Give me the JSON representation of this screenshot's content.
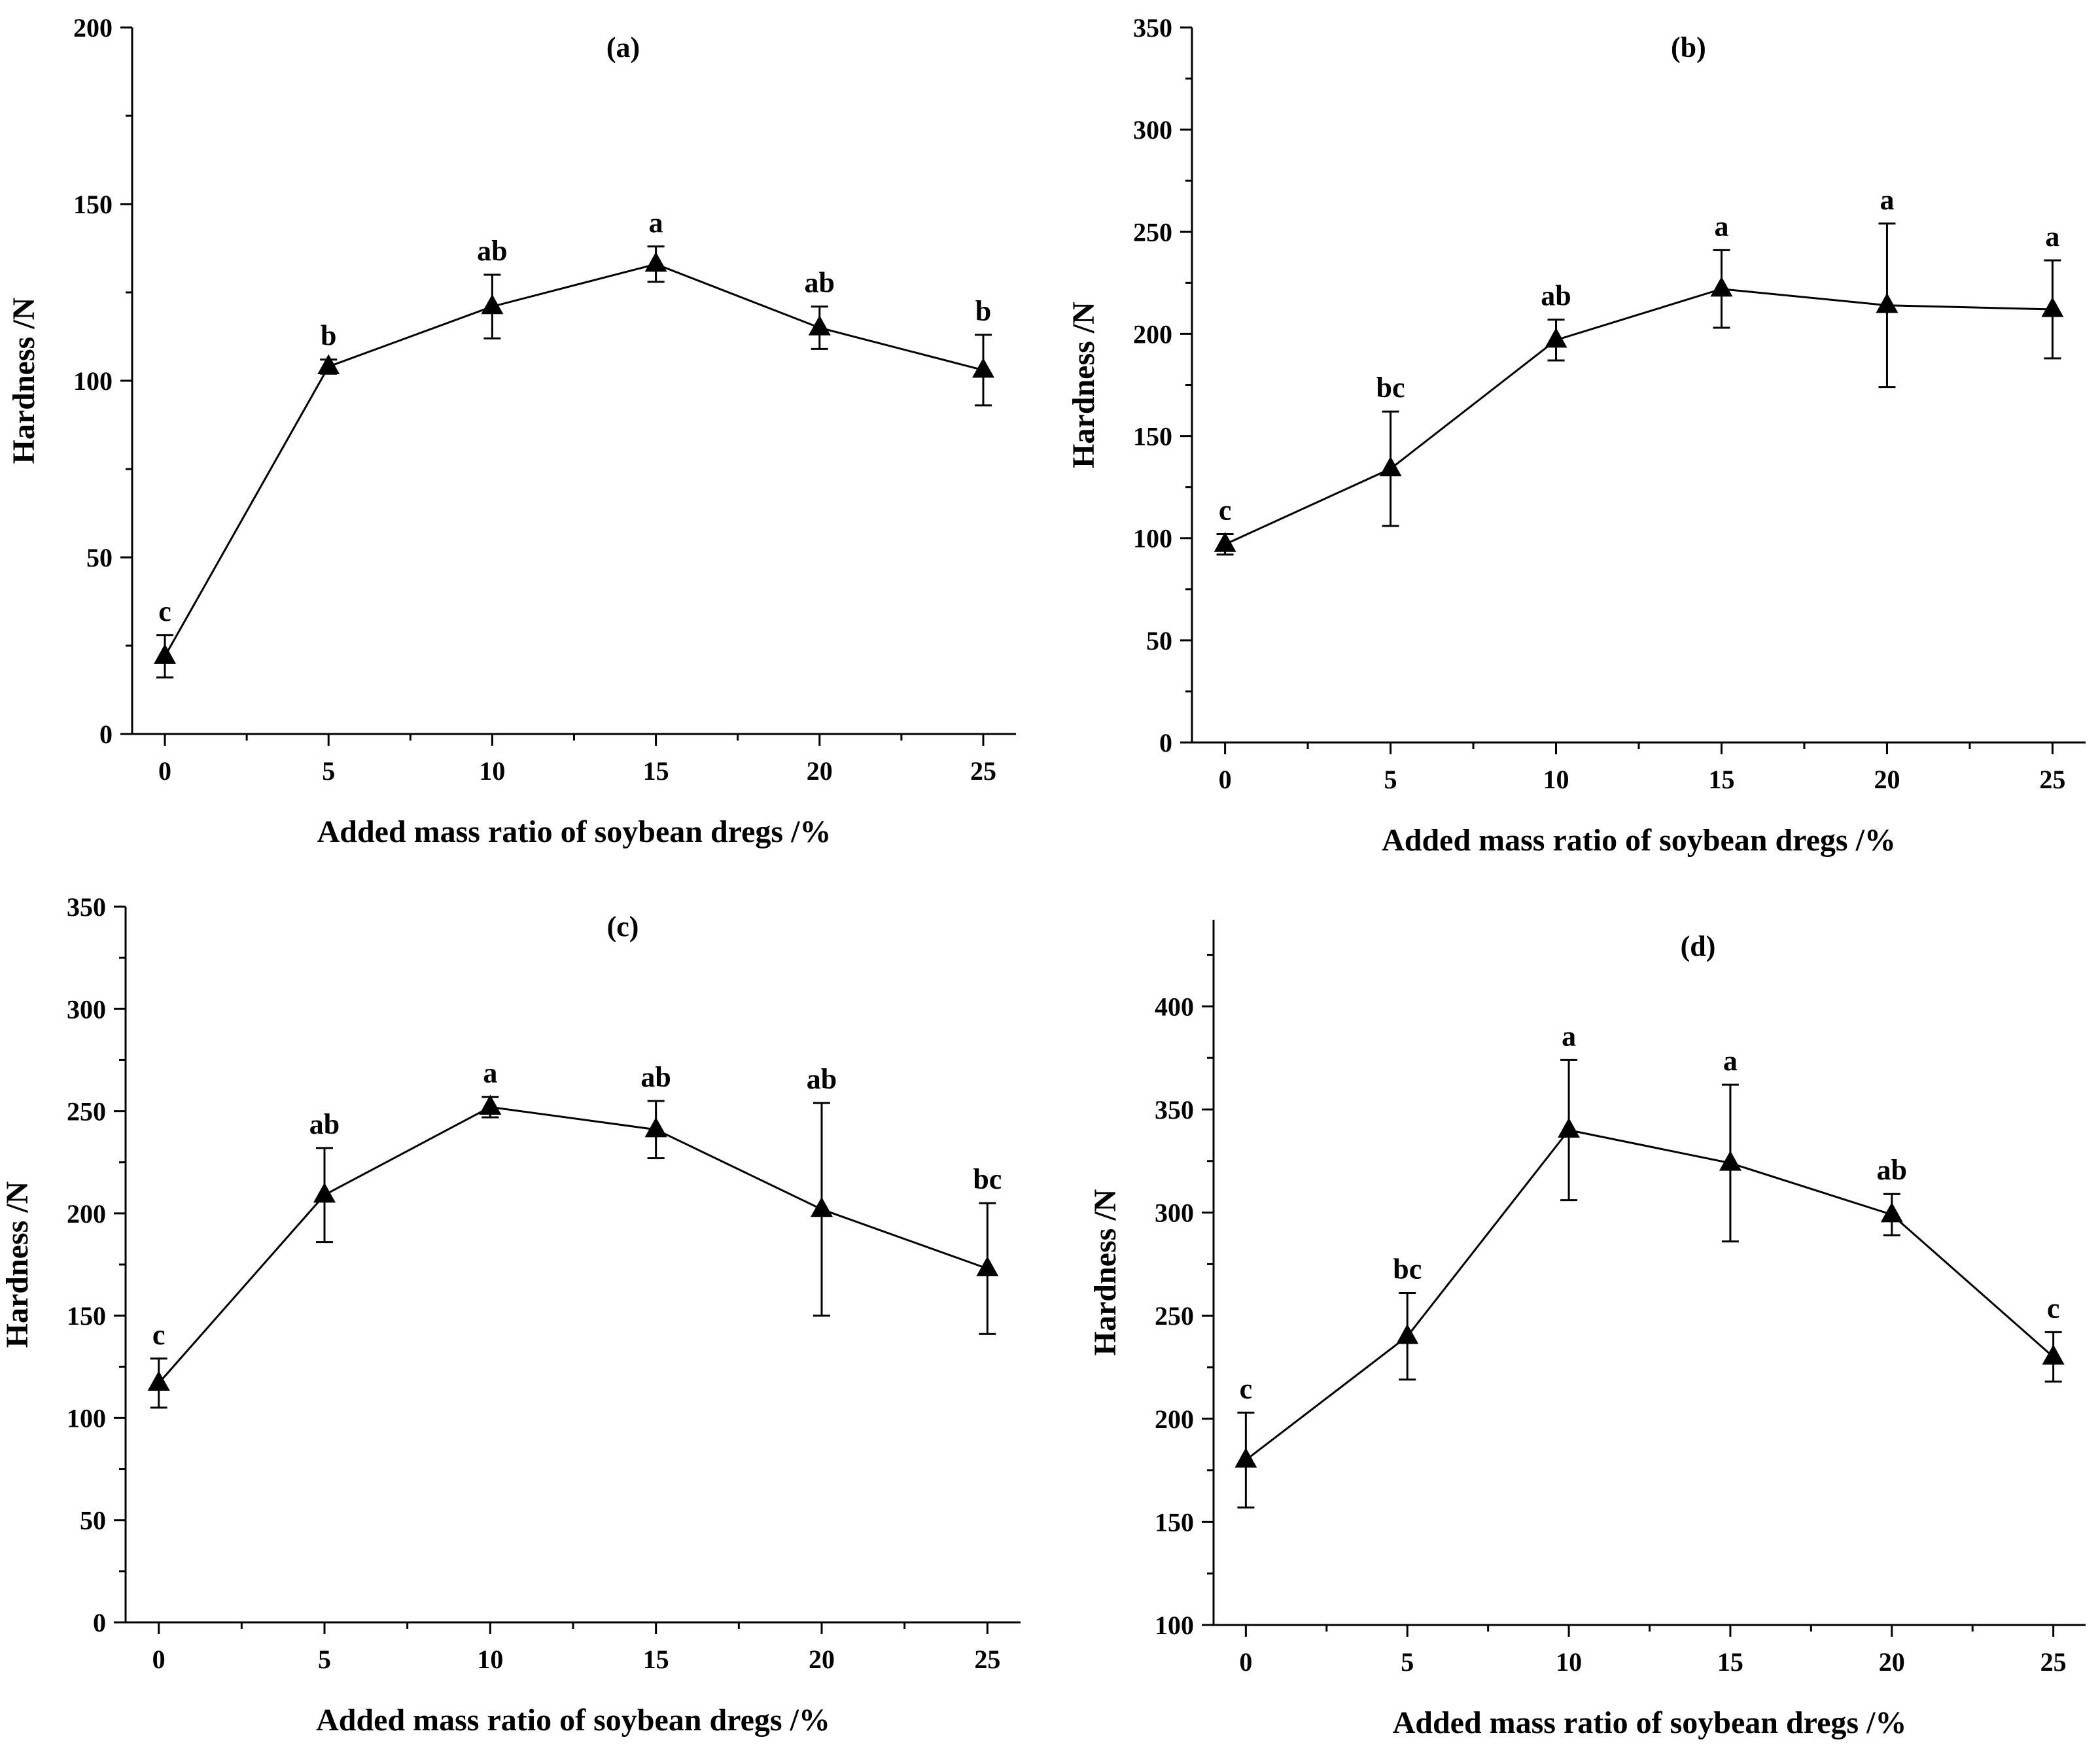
{
  "figure": {
    "colors": {
      "ink": "#000000",
      "background": "#ffffff"
    }
  },
  "chart_data": [
    {
      "type": "line",
      "title": "(a)",
      "xlabel": "Added mass ratio of soybean dregs /%",
      "ylabel": "Hardness /N",
      "x": [
        0,
        5,
        10,
        15,
        20,
        25
      ],
      "values": [
        22,
        104,
        121,
        133,
        115,
        103
      ],
      "errors": [
        6,
        2,
        9,
        5,
        6,
        10
      ],
      "labels": [
        "c",
        "b",
        "ab",
        "a",
        "ab",
        "b"
      ],
      "xticks": [
        0,
        5,
        10,
        15,
        20,
        25
      ],
      "yticks": [
        0,
        50,
        100,
        150,
        200
      ],
      "ylim": [
        0,
        200
      ],
      "xlim": [
        -1,
        26
      ]
    },
    {
      "type": "line",
      "title": "(b)",
      "xlabel": "Added mass ratio of soybean dregs /%",
      "ylabel": "Hardness /N",
      "x": [
        0,
        5,
        10,
        15,
        20,
        25
      ],
      "values": [
        97,
        134,
        197,
        222,
        214,
        212
      ],
      "errors": [
        5,
        28,
        10,
        19,
        40,
        24
      ],
      "labels": [
        "c",
        "bc",
        "ab",
        "a",
        "a",
        "a"
      ],
      "xticks": [
        0,
        5,
        10,
        15,
        20,
        25
      ],
      "yticks": [
        0,
        50,
        100,
        150,
        200,
        250,
        300,
        350
      ],
      "ylim": [
        0,
        350
      ],
      "xlim": [
        -1,
        26
      ]
    },
    {
      "type": "line",
      "title": "(c)",
      "xlabel": "Added mass ratio of soybean dregs /%",
      "ylabel": "Hardness /N",
      "x": [
        0,
        5,
        10,
        15,
        20,
        25
      ],
      "values": [
        117,
        209,
        252,
        241,
        202,
        173
      ],
      "errors": [
        12,
        23,
        5,
        14,
        52,
        32
      ],
      "labels": [
        "c",
        "ab",
        "a",
        "ab",
        "ab",
        "bc"
      ],
      "xticks": [
        0,
        5,
        10,
        15,
        20,
        25
      ],
      "yticks": [
        0,
        50,
        100,
        150,
        200,
        250,
        300,
        350
      ],
      "ylim": [
        0,
        350
      ],
      "xlim": [
        -1,
        26
      ]
    },
    {
      "type": "line",
      "title": "(d)",
      "xlabel": "Added mass ratio of soybean dregs /%",
      "ylabel": "Hardness /N",
      "x": [
        0,
        5,
        10,
        15,
        20,
        25
      ],
      "values": [
        180,
        240,
        340,
        324,
        299,
        230
      ],
      "errors": [
        23,
        21,
        34,
        38,
        10,
        12
      ],
      "labels": [
        "c",
        "bc",
        "a",
        "a",
        "ab",
        "c"
      ],
      "xticks": [
        0,
        5,
        10,
        15,
        20,
        25
      ],
      "yticks": [
        100,
        150,
        200,
        250,
        300,
        350,
        400
      ],
      "ylim": [
        100,
        442
      ],
      "xlim": [
        -1,
        26
      ]
    }
  ]
}
